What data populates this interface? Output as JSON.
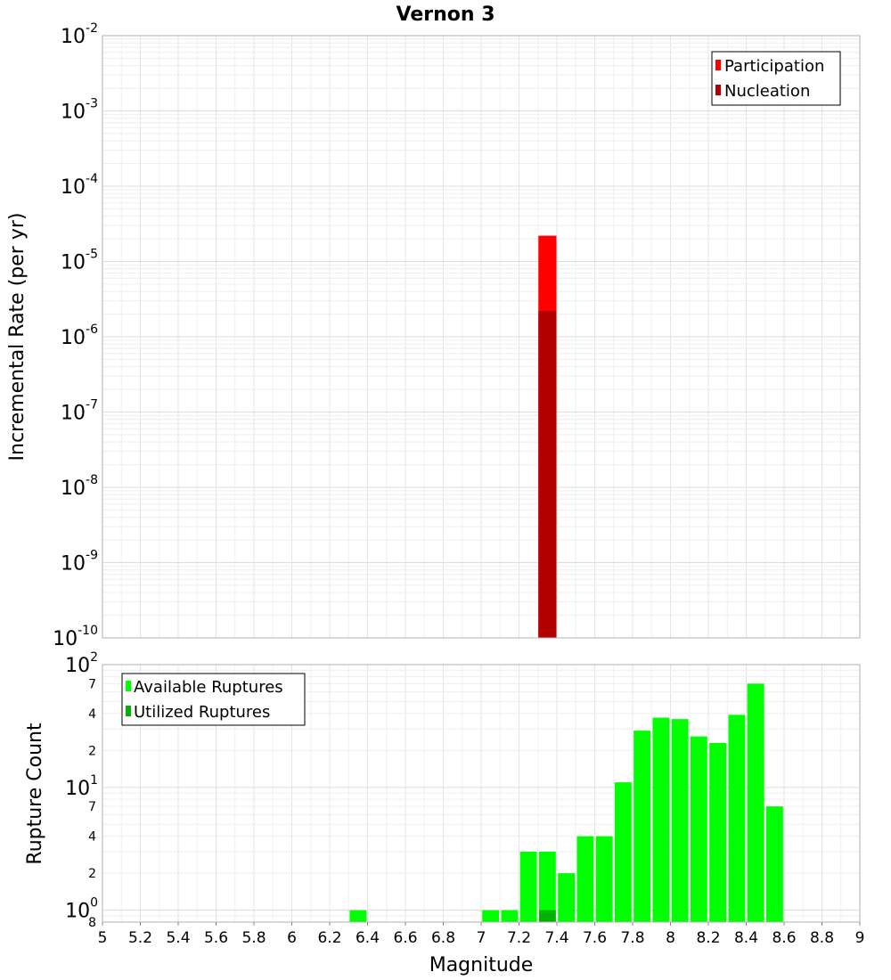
{
  "chart_data": [
    {
      "type": "bar",
      "title": "Vernon 3",
      "ylabel": "Incremental Rate (per yr)",
      "yscale": "log",
      "ylim": [
        1e-10,
        0.01
      ],
      "xlim": [
        5,
        9
      ],
      "bin_width": 0.1,
      "grid": true,
      "legend_position": "top-right",
      "y_major_ticks": [
        {
          "base": "10",
          "exp": "-10",
          "value": 1e-10
        },
        {
          "base": "10",
          "exp": "-9",
          "value": 1e-09
        },
        {
          "base": "10",
          "exp": "-8",
          "value": 1e-08
        },
        {
          "base": "10",
          "exp": "-7",
          "value": 1e-07
        },
        {
          "base": "10",
          "exp": "-6",
          "value": 1e-06
        },
        {
          "base": "10",
          "exp": "-5",
          "value": 1e-05
        },
        {
          "base": "10",
          "exp": "-4",
          "value": 0.0001
        },
        {
          "base": "10",
          "exp": "-3",
          "value": 0.001
        },
        {
          "base": "10",
          "exp": "-2",
          "value": 0.01
        }
      ],
      "series": [
        {
          "name": "Participation",
          "color": "#ff0000",
          "x": [
            7.35
          ],
          "values": [
            2.2e-05
          ]
        },
        {
          "name": "Nucleation",
          "color": "#b30000",
          "x": [
            7.35
          ],
          "values": [
            2.2e-06
          ]
        }
      ]
    },
    {
      "type": "bar",
      "xlabel": "Magnitude",
      "ylabel": "Rupture Count",
      "yscale": "log",
      "ylim": [
        0.8,
        100
      ],
      "xlim": [
        5,
        9
      ],
      "bin_width": 0.1,
      "grid": true,
      "legend_position": "top-left",
      "x_ticks": [
        "5",
        "5.2",
        "5.4",
        "5.6",
        "5.8",
        "6",
        "6.2",
        "6.4",
        "6.6",
        "6.8",
        "7",
        "7.2",
        "7.4",
        "7.6",
        "7.8",
        "8",
        "8.2",
        "8.4",
        "8.6",
        "8.8",
        "9"
      ],
      "y_major_ticks": [
        {
          "base": "10",
          "exp": "0",
          "value": 1
        },
        {
          "base": "10",
          "exp": "1",
          "value": 10
        },
        {
          "base": "10",
          "exp": "2",
          "value": 100
        }
      ],
      "y_minor_ticks": [
        {
          "label": "8",
          "value": 0.8
        },
        {
          "label": "2",
          "value": 2
        },
        {
          "label": "4",
          "value": 4
        },
        {
          "label": "7",
          "value": 7
        },
        {
          "label": "2",
          "value": 20
        },
        {
          "label": "4",
          "value": 40
        },
        {
          "label": "7",
          "value": 70
        }
      ],
      "series": [
        {
          "name": "Available Ruptures",
          "color": "#00ff00",
          "x": [
            6.35,
            7.05,
            7.15,
            7.25,
            7.35,
            7.45,
            7.55,
            7.65,
            7.75,
            7.85,
            7.95,
            8.05,
            8.15,
            8.25,
            8.35,
            8.45,
            8.55
          ],
          "values": [
            1,
            1,
            1,
            3,
            3,
            2,
            4,
            4,
            11,
            29,
            37,
            36,
            26,
            23,
            39,
            70,
            7
          ]
        },
        {
          "name": "Utilized Ruptures",
          "color": "#00b300",
          "x": [
            7.35
          ],
          "values": [
            1
          ]
        }
      ]
    }
  ]
}
